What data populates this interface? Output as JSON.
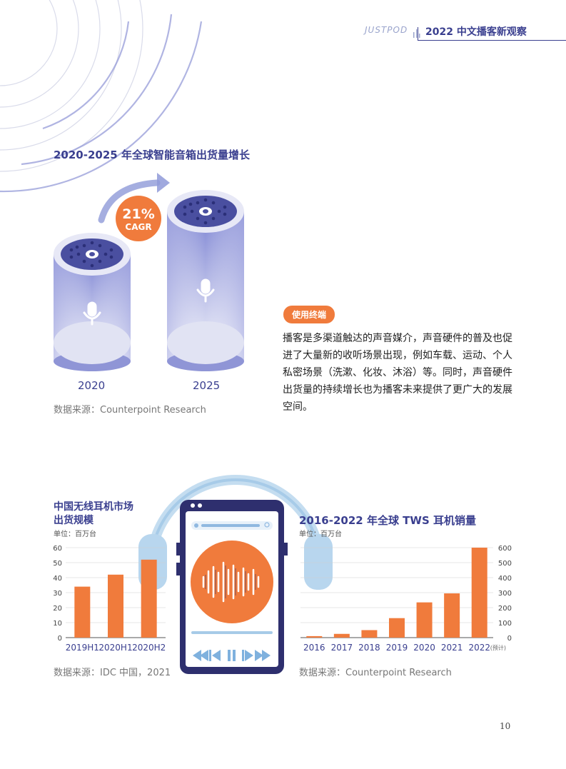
{
  "header": {
    "brand": "JUSTPOD",
    "title": "2022 中文播客新观察"
  },
  "smart_speaker": {
    "title": "2020-2025 年全球智能音箱出货量增长",
    "cagr_value": "21%",
    "cagr_label": "CAGR",
    "year_left": "2020",
    "year_right": "2025",
    "source": "数据来源：Counterpoint Research"
  },
  "terminal": {
    "badge": "使用终端",
    "paragraph": "播客是多渠道触达的声音媒介，声音硬件的普及也促进了大量新的收听场景出现，例如车载、运动、个人私密场景（洗漱、化妆、沐浴）等。同时，声音硬件出货量的持续增长也为播客未来提供了更广大的发展空间。"
  },
  "colors": {
    "accent_orange": "#f07b3c",
    "brand_navy": "#3a3f8f",
    "speaker_purple": "#8f95d6"
  },
  "chart_data": [
    {
      "type": "bar",
      "title": "中国无线耳机市场出货规模",
      "title_line1": "中国无线耳机市场",
      "title_line2": "出货规模",
      "unit": "单位：百万台",
      "categories": [
        "2019H1",
        "2020H1",
        "2020H2"
      ],
      "values": [
        34,
        42,
        52
      ],
      "ylim": [
        0,
        60
      ],
      "yticks": [
        "0",
        "10",
        "20",
        "30",
        "40",
        "50",
        "60"
      ],
      "grid": true,
      "source": "数据来源：IDC 中国，2021"
    },
    {
      "type": "bar",
      "title": "2016-2022 年全球 TWS 耳机销量",
      "unit": "单位：百万台",
      "categories": [
        "2016",
        "2017",
        "2018",
        "2019",
        "2020",
        "2021",
        "2022"
      ],
      "forecast_note": "(预计)",
      "values": [
        10,
        25,
        50,
        130,
        235,
        295,
        600
      ],
      "ylim": [
        0,
        600
      ],
      "yticks": [
        "0",
        "100",
        "200",
        "300",
        "400",
        "500",
        "600"
      ],
      "grid": true,
      "source": "数据来源：Counterpoint Research"
    }
  ],
  "page_number": "10"
}
